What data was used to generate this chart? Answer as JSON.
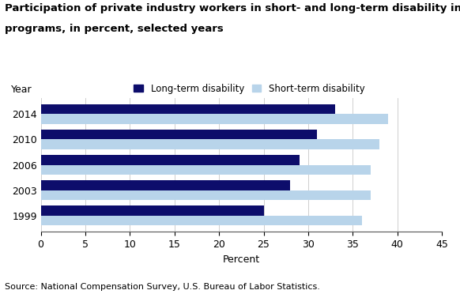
{
  "title_line1": "Participation of private industry workers in short- and long-term disability insurance",
  "title_line2": "programs, in percent, selected years",
  "years": [
    "2014",
    "2010",
    "2006",
    "2003",
    "1999"
  ],
  "long_term": [
    33,
    31,
    29,
    28,
    25
  ],
  "short_term": [
    39,
    38,
    37,
    37,
    36
  ],
  "long_term_color": "#0d0d6b",
  "short_term_color": "#b8d4ea",
  "xlabel": "Percent",
  "ylabel": "Year",
  "xlim": [
    0,
    45
  ],
  "xticks": [
    0,
    5,
    10,
    15,
    20,
    25,
    30,
    35,
    40,
    45
  ],
  "legend_long": "Long-term disability",
  "legend_short": "Short-term disability",
  "source": "Source: National Compensation Survey, U.S. Bureau of Labor Statistics.",
  "bar_height": 0.38,
  "background_color": "#ffffff",
  "title_fontsize": 9.5,
  "axis_fontsize": 9,
  "tick_fontsize": 9,
  "source_fontsize": 8,
  "legend_fontsize": 8.5
}
